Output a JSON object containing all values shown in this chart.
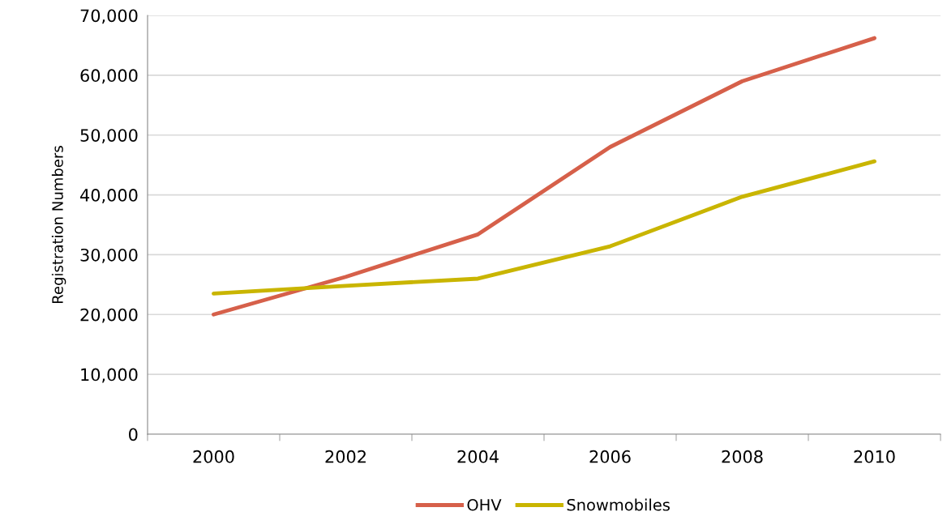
{
  "chart_data": {
    "type": "line",
    "ylabel": "Registration Numbers",
    "categories": [
      "2000",
      "2002",
      "2004",
      "2006",
      "2008",
      "2010"
    ],
    "series": [
      {
        "name": "OHV",
        "color": "#d6604a",
        "values": [
          20000,
          26300,
          33400,
          48000,
          59000,
          66200
        ]
      },
      {
        "name": "Snowmobiles",
        "color": "#c9b500",
        "values": [
          23500,
          24800,
          26000,
          31400,
          39700,
          45600
        ]
      }
    ],
    "ylim": [
      0,
      70000
    ],
    "yticks": [
      {
        "value": 0,
        "label": "0"
      },
      {
        "value": 10000,
        "label": "10,000"
      },
      {
        "value": 20000,
        "label": "20,000"
      },
      {
        "value": 30000,
        "label": "30,000"
      },
      {
        "value": 40000,
        "label": "40,000"
      },
      {
        "value": 50000,
        "label": "50,000"
      },
      {
        "value": 60000,
        "label": "60,000"
      },
      {
        "value": 70000,
        "label": "70,000"
      }
    ],
    "grid": "y",
    "legend": "bottom",
    "marker": "none",
    "line_style": "solid"
  }
}
